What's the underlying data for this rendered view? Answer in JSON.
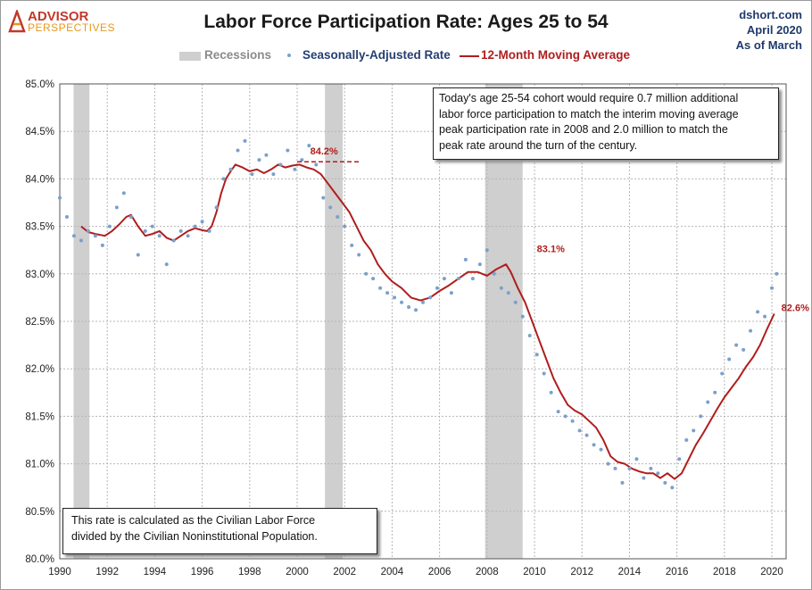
{
  "logo": {
    "line1": "ADVISOR",
    "line2": "PERSPECTIVES"
  },
  "source": {
    "site": "dshort.com",
    "date": "April 2020",
    "asof": "As of March"
  },
  "chart_data": {
    "type": "line",
    "title": "Labor Force Participation Rate: Ages 25 to 54",
    "legend": {
      "recessions": "Recessions",
      "sa": "Seasonally-Adjusted Rate",
      "ma": "12-Month Moving Average",
      "placement": "top-center"
    },
    "xlim": [
      1990.0,
      2020.6
    ],
    "ylim": [
      80.0,
      85.0
    ],
    "x_ticks": [
      "1990",
      "1992",
      "1994",
      "1996",
      "1998",
      "2000",
      "2002",
      "2004",
      "2006",
      "2008",
      "2010",
      "2012",
      "2014",
      "2016",
      "2018",
      "2020"
    ],
    "y_ticks": [
      "80.0%",
      "80.5%",
      "81.0%",
      "81.5%",
      "82.0%",
      "82.5%",
      "83.0%",
      "83.5%",
      "84.0%",
      "84.5%",
      "85.0%"
    ],
    "grid": true,
    "recessions": [
      [
        1990.58,
        1991.25
      ],
      [
        2001.17,
        2001.92
      ],
      [
        2007.92,
        2009.5
      ]
    ],
    "series": [
      {
        "name": "12-Month Moving Average",
        "color": "#b01d1d",
        "style": "line",
        "x": [
          1990.9,
          1991.2,
          1991.5,
          1991.9,
          1992.2,
          1992.5,
          1992.8,
          1993.0,
          1993.3,
          1993.6,
          1993.9,
          1994.2,
          1994.5,
          1994.8,
          1995.1,
          1995.4,
          1995.7,
          1996.0,
          1996.2,
          1996.4,
          1996.6,
          1996.8,
          1997.0,
          1997.2,
          1997.4,
          1997.7,
          1998.0,
          1998.3,
          1998.6,
          1998.9,
          1999.2,
          1999.5,
          1999.8,
          2000.1,
          2000.4,
          2000.7,
          2001.0,
          2001.3,
          2001.6,
          2001.9,
          2002.2,
          2002.5,
          2002.8,
          2003.1,
          2003.4,
          2003.7,
          2004.0,
          2004.4,
          2004.8,
          2005.2,
          2005.6,
          2006.0,
          2006.4,
          2006.8,
          2007.2,
          2007.6,
          2008.0,
          2008.4,
          2008.8,
          2009.0,
          2009.3,
          2009.6,
          2009.9,
          2010.2,
          2010.5,
          2010.8,
          2011.1,
          2011.4,
          2011.7,
          2012.0,
          2012.3,
          2012.6,
          2012.9,
          2013.2,
          2013.5,
          2013.8,
          2014.1,
          2014.4,
          2014.7,
          2015.0,
          2015.3,
          2015.6,
          2015.9,
          2016.2,
          2016.5,
          2016.8,
          2017.1,
          2017.4,
          2017.7,
          2018.0,
          2018.3,
          2018.6,
          2018.9,
          2019.2,
          2019.5,
          2019.8,
          2020.1
        ],
        "y": [
          83.5,
          83.44,
          83.42,
          83.4,
          83.45,
          83.52,
          83.6,
          83.62,
          83.5,
          83.4,
          83.42,
          83.45,
          83.38,
          83.35,
          83.4,
          83.45,
          83.48,
          83.46,
          83.45,
          83.5,
          83.65,
          83.85,
          84.0,
          84.08,
          84.15,
          84.12,
          84.08,
          84.1,
          84.06,
          84.1,
          84.15,
          84.12,
          84.14,
          84.15,
          84.12,
          84.1,
          84.05,
          83.95,
          83.85,
          83.75,
          83.65,
          83.5,
          83.35,
          83.25,
          83.1,
          83.0,
          82.92,
          82.85,
          82.75,
          82.72,
          82.75,
          82.82,
          82.88,
          82.95,
          83.02,
          83.02,
          82.98,
          83.05,
          83.1,
          83.02,
          82.85,
          82.7,
          82.5,
          82.3,
          82.1,
          81.9,
          81.75,
          81.62,
          81.56,
          81.52,
          81.45,
          81.38,
          81.25,
          81.08,
          81.02,
          81.0,
          80.95,
          80.92,
          80.9,
          80.9,
          80.85,
          80.9,
          80.84,
          80.9,
          81.05,
          81.2,
          81.32,
          81.45,
          81.58,
          81.7,
          81.8,
          81.9,
          82.02,
          82.12,
          82.25,
          82.42,
          82.58
        ]
      },
      {
        "name": "Seasonally-Adjusted Rate",
        "color": "#7aa0cc",
        "style": "dots",
        "x": [
          1990.0,
          1990.3,
          1990.6,
          1990.9,
          1991.2,
          1991.5,
          1991.8,
          1992.1,
          1992.4,
          1992.7,
          1993.0,
          1993.3,
          1993.6,
          1993.9,
          1994.2,
          1994.5,
          1994.8,
          1995.1,
          1995.4,
          1995.7,
          1996.0,
          1996.3,
          1996.6,
          1996.9,
          1997.2,
          1997.5,
          1997.8,
          1998.1,
          1998.4,
          1998.7,
          1999.0,
          1999.3,
          1999.6,
          1999.9,
          2000.2,
          2000.5,
          2000.8,
          2001.1,
          2001.4,
          2001.7,
          2002.0,
          2002.3,
          2002.6,
          2002.9,
          2003.2,
          2003.5,
          2003.8,
          2004.1,
          2004.4,
          2004.7,
          2005.0,
          2005.3,
          2005.6,
          2005.9,
          2006.2,
          2006.5,
          2006.8,
          2007.1,
          2007.4,
          2007.7,
          2008.0,
          2008.3,
          2008.6,
          2008.9,
          2009.2,
          2009.5,
          2009.8,
          2010.1,
          2010.4,
          2010.7,
          2011.0,
          2011.3,
          2011.6,
          2011.9,
          2012.2,
          2012.5,
          2012.8,
          2013.1,
          2013.4,
          2013.7,
          2014.0,
          2014.3,
          2014.6,
          2014.9,
          2015.2,
          2015.5,
          2015.8,
          2016.1,
          2016.4,
          2016.7,
          2017.0,
          2017.3,
          2017.6,
          2017.9,
          2018.2,
          2018.5,
          2018.8,
          2019.1,
          2019.4,
          2019.7,
          2020.0,
          2020.2
        ],
        "y": [
          83.8,
          83.6,
          83.4,
          83.35,
          83.45,
          83.4,
          83.3,
          83.5,
          83.7,
          83.85,
          83.6,
          83.2,
          83.45,
          83.5,
          83.4,
          83.1,
          83.35,
          83.45,
          83.4,
          83.5,
          83.55,
          83.45,
          83.7,
          84.0,
          84.1,
          84.3,
          84.4,
          84.05,
          84.2,
          84.25,
          84.05,
          84.15,
          84.3,
          84.1,
          84.2,
          84.35,
          84.15,
          83.8,
          83.7,
          83.6,
          83.5,
          83.3,
          83.2,
          83.0,
          82.95,
          82.85,
          82.8,
          82.75,
          82.7,
          82.65,
          82.62,
          82.7,
          82.75,
          82.85,
          82.95,
          82.8,
          82.95,
          83.15,
          82.95,
          83.1,
          83.25,
          83.0,
          82.85,
          82.8,
          82.7,
          82.55,
          82.35,
          82.15,
          81.95,
          81.75,
          81.55,
          81.5,
          81.45,
          81.35,
          81.3,
          81.2,
          81.15,
          81.0,
          80.95,
          80.8,
          80.95,
          81.05,
          80.85,
          80.95,
          80.9,
          80.8,
          80.75,
          81.05,
          81.25,
          81.35,
          81.5,
          81.65,
          81.75,
          81.95,
          82.1,
          82.25,
          82.2,
          82.4,
          82.6,
          82.55,
          82.85,
          83.0
        ]
      }
    ],
    "annotations": {
      "peak_2000": "84.2%",
      "peak_2008": "83.1%",
      "latest": "82.6%",
      "note_top": [
        "Today's age 25-54  cohort would require 0.7 million additional",
        "labor force participation to match the interim moving average",
        "peak participation rate in 2008  and 2.0  million to match the",
        "peak rate around the turn of the century."
      ],
      "note_bottom": [
        "This rate is calculated as the Civilian Labor Force",
        "divided by the Civilian Noninstitutional Population."
      ]
    }
  }
}
